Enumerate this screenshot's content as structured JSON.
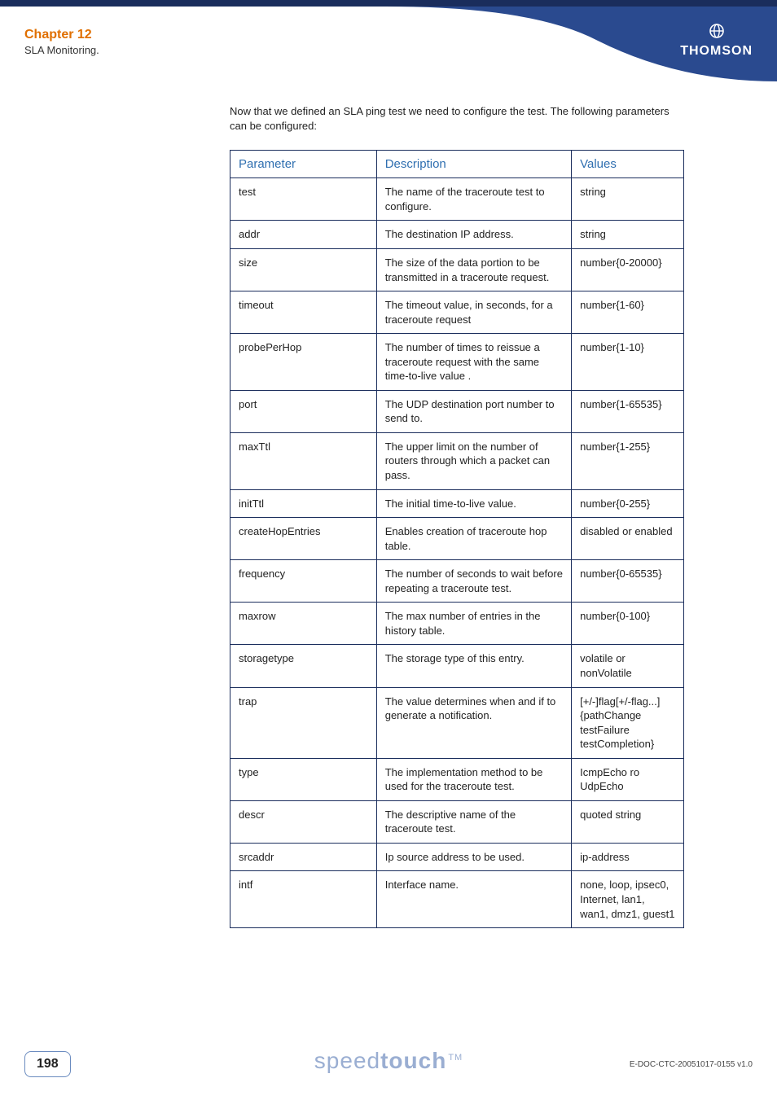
{
  "header": {
    "chapter_title": "Chapter 12",
    "chapter_sub": "SLA Monitoring.",
    "logo_text": "THOMSON",
    "banner_color": "#1a2d5c",
    "curve_color": "#2a4a8f",
    "chapter_color": "#e06f00"
  },
  "intro": "Now that we defined an SLA ping test we need to configure the test. The following parameters can be configured:",
  "table": {
    "header_color": "#2f6fb0",
    "border_color": "#1a2d5c",
    "columns": [
      "Parameter",
      "Description",
      "Values"
    ],
    "rows": [
      {
        "param": "test",
        "desc": "The name of the traceroute test to configure.",
        "values": "string"
      },
      {
        "param": "addr",
        "desc": "The destination IP address.",
        "values": "string"
      },
      {
        "param": "size",
        "desc": "The size of the data portion to be transmitted in a traceroute request.",
        "values": "number{0-20000}"
      },
      {
        "param": "timeout",
        "desc": "The timeout value, in seconds, for a traceroute request",
        "values": "number{1-60}"
      },
      {
        "param": "probePerHop",
        "desc": " The number of times to reissue a traceroute request with the same time-to-live value .",
        "values": "number{1-10}"
      },
      {
        "param": "port",
        "desc": "The UDP destination port number to send to.",
        "values": "number{1-65535}"
      },
      {
        "param": "maxTtl",
        "desc": "The upper limit on the number of routers through which a packet can pass.",
        "values": "number{1-255}"
      },
      {
        "param": "initTtl",
        "desc": "The initial time-to-live value.",
        "values": "number{0-255}"
      },
      {
        "param": "createHopEntries",
        "desc": "Enables creation of traceroute hop table.",
        "values": "disabled or enabled"
      },
      {
        "param": "frequency",
        "desc": "The number of seconds to wait before repeating a traceroute test.",
        "values": "number{0-65535}"
      },
      {
        "param": "maxrow",
        "desc": "The max number of entries in the history table.",
        "values": "number{0-100}"
      },
      {
        "param": "storagetype",
        "desc": "The storage type of this entry.",
        "values": "volatile or nonVolatile"
      },
      {
        "param": "trap",
        "desc": "The value determines when and if to generate a notification.",
        "values": "[+/-]flag[+/-flag...]{pathChange testFailure testCompletion}"
      },
      {
        "param": "type",
        "desc": "The implementation method to be used for the traceroute test.",
        "values": "IcmpEcho ro UdpEcho"
      },
      {
        "param": "descr",
        "desc": "The descriptive name of the traceroute test.",
        "values": "quoted string"
      },
      {
        "param": "srcaddr",
        "desc": "Ip source address to be used.",
        "values": "ip-address"
      },
      {
        "param": "intf",
        "desc": "Interface name.",
        "values": "none, loop, ipsec0, Internet, lan1, wan1, dmz1, guest1"
      }
    ]
  },
  "footer": {
    "page_number": "198",
    "brand_light": "speed",
    "brand_bold": "touch",
    "brand_tm": "TM",
    "doc_ref": "E-DOC-CTC-20051017-0155 v1.0",
    "brand_color": "#9aaed2"
  }
}
